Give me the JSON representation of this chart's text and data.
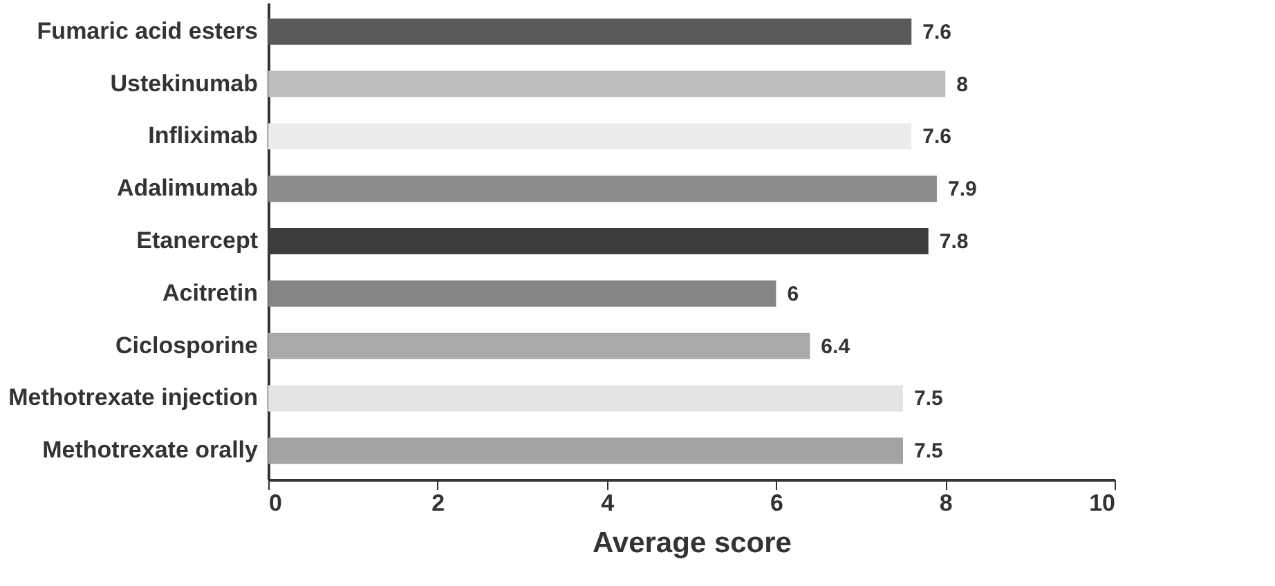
{
  "chart_data": {
    "type": "bar",
    "orientation": "horizontal",
    "xlabel": "Average score",
    "categories": [
      "Fumaric acid esters",
      "Ustekinumab",
      "Infliximab",
      "Adalimumab",
      "Etanercept",
      "Acitretin",
      "Ciclosporine",
      "Methotrexate injection",
      "Methotrexate orally"
    ],
    "values": [
      7.6,
      8,
      7.6,
      7.9,
      7.8,
      6,
      6.4,
      7.5,
      7.5
    ],
    "colors": [
      "#5a5a5a",
      "#bdbdbd",
      "#ececec",
      "#8c8c8c",
      "#3c3c3c",
      "#858585",
      "#a9a9a9",
      "#e4e4e4",
      "#a3a3a3"
    ],
    "xlim": [
      0,
      10
    ],
    "xticks": [
      0,
      2,
      4,
      6,
      8,
      10
    ],
    "data_labels": true,
    "grid": false
  }
}
